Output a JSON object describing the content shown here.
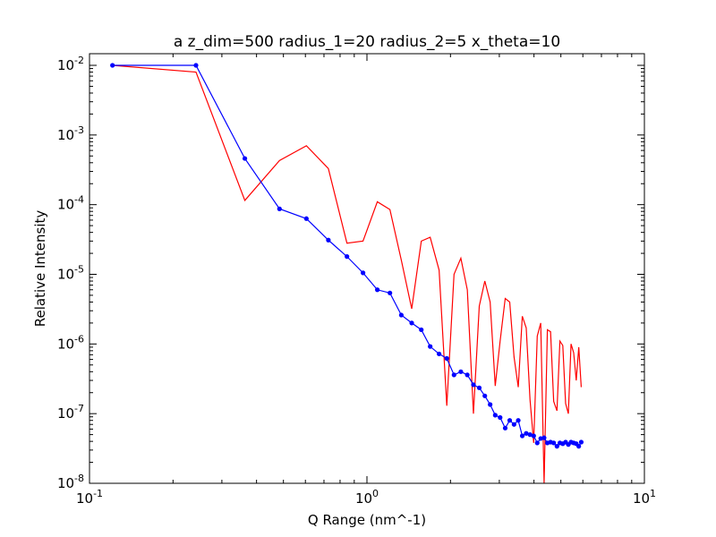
{
  "chart_data": {
    "type": "line",
    "title": "a z_dim=500 radius_1=20 radius_2=5 x_theta=10",
    "xlabel": "Q Range (nm^-1)",
    "ylabel": "Relative Intensity",
    "xscale": "log",
    "yscale": "log",
    "xlim": [
      0.1,
      10
    ],
    "ylim": [
      1e-08,
      0.02
    ],
    "grid": false,
    "x_ticks": [
      {
        "value": 0.1,
        "base": "10",
        "exp": "-1"
      },
      {
        "value": 1,
        "base": "10",
        "exp": "0"
      },
      {
        "value": 10,
        "base": "10",
        "exp": "1"
      }
    ],
    "y_ticks": [
      {
        "value": 1e-08,
        "base": "10",
        "exp": "-8"
      },
      {
        "value": 1e-07,
        "base": "10",
        "exp": "-7"
      },
      {
        "value": 1e-06,
        "base": "10",
        "exp": "-6"
      },
      {
        "value": 1e-05,
        "base": "10",
        "exp": "-5"
      },
      {
        "value": 0.0001,
        "base": "10",
        "exp": "-4"
      },
      {
        "value": 0.001,
        "base": "10",
        "exp": "-3"
      },
      {
        "value": 0.01,
        "base": "10",
        "exp": "-2"
      }
    ],
    "series": [
      {
        "color": "#0000ff",
        "markers": true,
        "points": [
          [
            0.121,
            0.01
          ],
          [
            0.242,
            0.01
          ],
          [
            0.363,
            0.00046
          ],
          [
            0.484,
            8.7e-05
          ],
          [
            0.605,
            6.3e-05
          ],
          [
            0.726,
            3.1e-05
          ],
          [
            0.847,
            1.8e-05
          ],
          [
            0.968,
            1.05e-05
          ],
          [
            1.09,
            6e-06
          ],
          [
            1.21,
            5.4e-06
          ],
          [
            1.33,
            2.6e-06
          ],
          [
            1.45,
            2e-06
          ],
          [
            1.57,
            1.6e-06
          ],
          [
            1.69,
            9.2e-07
          ],
          [
            1.82,
            7.2e-07
          ],
          [
            1.94,
            6.2e-07
          ],
          [
            2.06,
            3.6e-07
          ],
          [
            2.18,
            4e-07
          ],
          [
            2.3,
            3.6e-07
          ],
          [
            2.42,
            2.6e-07
          ],
          [
            2.54,
            2.35e-07
          ],
          [
            2.66,
            1.8e-07
          ],
          [
            2.78,
            1.35e-07
          ],
          [
            2.9,
            9.5e-08
          ],
          [
            3.02,
            8.8e-08
          ],
          [
            3.15,
            6.2e-08
          ],
          [
            3.27,
            8e-08
          ],
          [
            3.39,
            7e-08
          ],
          [
            3.51,
            8e-08
          ],
          [
            3.63,
            4.8e-08
          ],
          [
            3.75,
            5.2e-08
          ],
          [
            3.87,
            5e-08
          ],
          [
            3.99,
            4.8e-08
          ],
          [
            4.11,
            3.8e-08
          ],
          [
            4.23,
            4.4e-08
          ],
          [
            4.35,
            4.5e-08
          ],
          [
            4.47,
            3.8e-08
          ],
          [
            4.59,
            3.9e-08
          ],
          [
            4.71,
            3.8e-08
          ],
          [
            4.84,
            3.4e-08
          ],
          [
            4.96,
            3.8e-08
          ],
          [
            5.08,
            3.7e-08
          ],
          [
            5.2,
            3.9e-08
          ],
          [
            5.32,
            3.6e-08
          ],
          [
            5.44,
            3.9e-08
          ],
          [
            5.56,
            3.8e-08
          ],
          [
            5.68,
            3.7e-08
          ],
          [
            5.8,
            3.4e-08
          ],
          [
            5.92,
            3.9e-08
          ]
        ]
      },
      {
        "color": "#ff0000",
        "markers": false,
        "points": [
          [
            0.121,
            0.01
          ],
          [
            0.242,
            0.008
          ],
          [
            0.363,
            0.000115
          ],
          [
            0.484,
            0.00043
          ],
          [
            0.605,
            0.0007
          ],
          [
            0.726,
            0.00033
          ],
          [
            0.847,
            2.8e-05
          ],
          [
            0.968,
            3e-05
          ],
          [
            1.09,
            0.00011
          ],
          [
            1.21,
            8.5e-05
          ],
          [
            1.33,
            1.6e-05
          ],
          [
            1.45,
            3.2e-06
          ],
          [
            1.57,
            3e-05
          ],
          [
            1.69,
            3.4e-05
          ],
          [
            1.82,
            1.15e-05
          ],
          [
            1.94,
            1.3e-07
          ],
          [
            2.06,
            1e-05
          ],
          [
            2.18,
            1.7e-05
          ],
          [
            2.3,
            6e-06
          ],
          [
            2.42,
            1e-07
          ],
          [
            2.54,
            3.5e-06
          ],
          [
            2.66,
            8e-06
          ],
          [
            2.78,
            4e-06
          ],
          [
            2.9,
            2.5e-07
          ],
          [
            3.02,
            1.1e-06
          ],
          [
            3.15,
            4.5e-06
          ],
          [
            3.27,
            4e-06
          ],
          [
            3.39,
            6.5e-07
          ],
          [
            3.51,
            2.4e-07
          ],
          [
            3.63,
            2.5e-06
          ],
          [
            3.75,
            1.7e-06
          ],
          [
            3.87,
            1.6e-07
          ],
          [
            3.99,
            3.8e-08
          ],
          [
            4.11,
            1.3e-06
          ],
          [
            4.23,
            2e-06
          ],
          [
            4.35,
            1e-08
          ],
          [
            4.47,
            1.6e-06
          ],
          [
            4.59,
            1.5e-06
          ],
          [
            4.71,
            1.5e-07
          ],
          [
            4.84,
            1.1e-07
          ],
          [
            4.96,
            1.1e-06
          ],
          [
            5.08,
            9.5e-07
          ],
          [
            5.2,
            1.4e-07
          ],
          [
            5.32,
            1e-07
          ],
          [
            5.44,
            1e-06
          ],
          [
            5.56,
            7.5e-07
          ],
          [
            5.68,
            3e-07
          ],
          [
            5.8,
            9e-07
          ],
          [
            5.92,
            2.4e-07
          ]
        ]
      }
    ]
  }
}
